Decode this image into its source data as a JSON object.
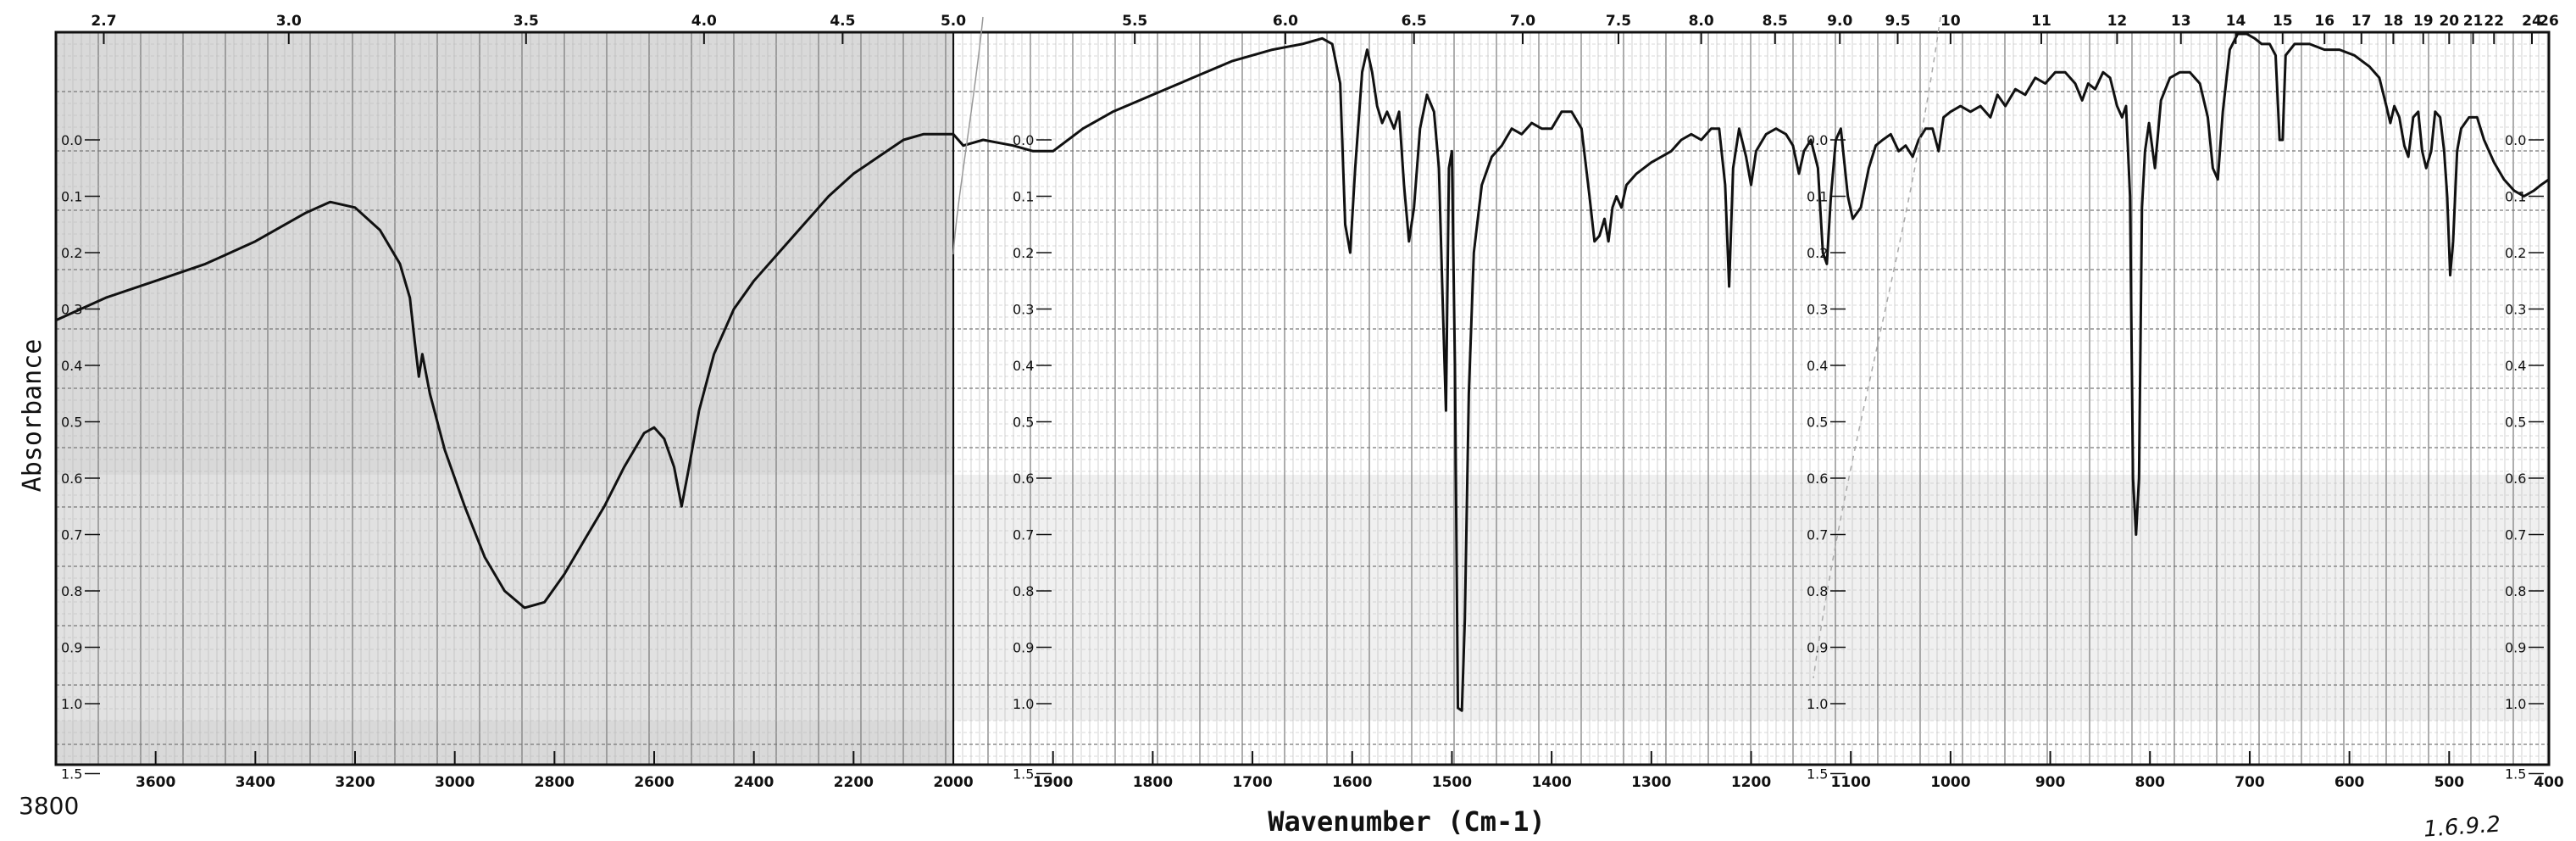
{
  "chart_data": {
    "type": "line",
    "xlabel": "Wavenumber (Cm-1)",
    "ylabel": "Absorbance",
    "corner_label": "3800",
    "handwritten_note": "1.6.9.2",
    "top_axis_label": "",
    "x_reversed": true,
    "xlim": [
      3800,
      400
    ],
    "x_scale_change_at": 2000,
    "bottom_ticks": [
      3600,
      3400,
      3200,
      3000,
      2800,
      2600,
      2400,
      2200,
      2000,
      1900,
      1800,
      1700,
      1600,
      1500,
      1400,
      1300,
      1200,
      1100,
      1000,
      900,
      800,
      700,
      600,
      500,
      400
    ],
    "top_ticks": [
      {
        "label": "2.7",
        "wn": 3704
      },
      {
        "label": "3.0",
        "wn": 3333
      },
      {
        "label": "3.5",
        "wn": 2857
      },
      {
        "label": "4.0",
        "wn": 2500
      },
      {
        "label": "4.5",
        "wn": 2222
      },
      {
        "label": "5.0",
        "wn": 2000
      },
      {
        "label": "5.5",
        "wn": 1818
      },
      {
        "label": "6.0",
        "wn": 1667
      },
      {
        "label": "6.5",
        "wn": 1538
      },
      {
        "label": "7.0",
        "wn": 1429
      },
      {
        "label": "7.5",
        "wn": 1333
      },
      {
        "label": "8.0",
        "wn": 1250
      },
      {
        "label": "8.5",
        "wn": 1176
      },
      {
        "label": "9.0",
        "wn": 1111
      },
      {
        "label": "9.5",
        "wn": 1053
      },
      {
        "label": "10",
        "wn": 1000
      },
      {
        "label": "11",
        "wn": 909
      },
      {
        "label": "12",
        "wn": 833
      },
      {
        "label": "13",
        "wn": 769
      },
      {
        "label": "14",
        "wn": 714
      },
      {
        "label": "15",
        "wn": 667
      },
      {
        "label": "16",
        "wn": 625
      },
      {
        "label": "17",
        "wn": 588
      },
      {
        "label": "18",
        "wn": 556
      },
      {
        "label": "19",
        "wn": 526
      },
      {
        "label": "20",
        "wn": 500
      },
      {
        "label": "21",
        "wn": 476
      },
      {
        "label": "22",
        "wn": 455
      },
      {
        "label": "24",
        "wn": 417
      },
      {
        "label": "26",
        "wn": 400
      }
    ],
    "y_ticks": [
      {
        "label": "0.0",
        "value": 0.0
      },
      {
        "label": "0.1",
        "value": 0.1
      },
      {
        "label": "0.2",
        "value": 0.2
      },
      {
        "label": "0.3",
        "value": 0.3
      },
      {
        "label": "0.4",
        "value": 0.4
      },
      {
        "label": "0.5",
        "value": 0.5
      },
      {
        "label": "0.6",
        "value": 0.6
      },
      {
        "label": "0.7",
        "value": 0.7
      },
      {
        "label": "0.8",
        "value": 0.8
      },
      {
        "label": "0.9",
        "value": 0.9
      },
      {
        "label": "1.0",
        "value": 1.0
      },
      {
        "label": "1.5",
        "value": 1.5
      }
    ],
    "grid": true,
    "legend": "none",
    "series": [
      {
        "color": "#111111",
        "points": [
          [
            3800,
            0.32
          ],
          [
            3700,
            0.28
          ],
          [
            3600,
            0.25
          ],
          [
            3500,
            0.22
          ],
          [
            3400,
            0.18
          ],
          [
            3300,
            0.13
          ],
          [
            3250,
            0.11
          ],
          [
            3200,
            0.12
          ],
          [
            3150,
            0.16
          ],
          [
            3110,
            0.22
          ],
          [
            3090,
            0.28
          ],
          [
            3080,
            0.36
          ],
          [
            3072,
            0.42
          ],
          [
            3065,
            0.38
          ],
          [
            3050,
            0.45
          ],
          [
            3020,
            0.55
          ],
          [
            2980,
            0.65
          ],
          [
            2940,
            0.74
          ],
          [
            2900,
            0.8
          ],
          [
            2860,
            0.83
          ],
          [
            2820,
            0.82
          ],
          [
            2780,
            0.77
          ],
          [
            2740,
            0.71
          ],
          [
            2700,
            0.65
          ],
          [
            2660,
            0.58
          ],
          [
            2620,
            0.52
          ],
          [
            2600,
            0.51
          ],
          [
            2580,
            0.53
          ],
          [
            2560,
            0.58
          ],
          [
            2545,
            0.65
          ],
          [
            2530,
            0.58
          ],
          [
            2510,
            0.48
          ],
          [
            2480,
            0.38
          ],
          [
            2440,
            0.3
          ],
          [
            2400,
            0.25
          ],
          [
            2350,
            0.2
          ],
          [
            2300,
            0.15
          ],
          [
            2250,
            0.1
          ],
          [
            2200,
            0.06
          ],
          [
            2150,
            0.03
          ],
          [
            2100,
            0.0
          ],
          [
            2060,
            -0.01
          ],
          [
            2030,
            -0.01
          ],
          [
            2005,
            -0.01
          ],
          [
            2000,
            -0.01
          ],
          [
            1990,
            0.01
          ],
          [
            1970,
            0.0
          ],
          [
            1940,
            0.01
          ],
          [
            1920,
            0.02
          ],
          [
            1900,
            0.02
          ],
          [
            1870,
            -0.02
          ],
          [
            1840,
            -0.05
          ],
          [
            1800,
            -0.08
          ],
          [
            1760,
            -0.11
          ],
          [
            1720,
            -0.14
          ],
          [
            1680,
            -0.16
          ],
          [
            1650,
            -0.17
          ],
          [
            1630,
            -0.18
          ],
          [
            1620,
            -0.17
          ],
          [
            1612,
            -0.1
          ],
          [
            1607,
            0.15
          ],
          [
            1602,
            0.2
          ],
          [
            1597,
            0.05
          ],
          [
            1590,
            -0.12
          ],
          [
            1585,
            -0.16
          ],
          [
            1580,
            -0.12
          ],
          [
            1575,
            -0.06
          ],
          [
            1570,
            -0.03
          ],
          [
            1565,
            -0.05
          ],
          [
            1558,
            -0.02
          ],
          [
            1553,
            -0.05
          ],
          [
            1548,
            0.08
          ],
          [
            1543,
            0.18
          ],
          [
            1538,
            0.12
          ],
          [
            1532,
            -0.02
          ],
          [
            1525,
            -0.08
          ],
          [
            1518,
            -0.05
          ],
          [
            1513,
            0.05
          ],
          [
            1509,
            0.3
          ],
          [
            1506,
            0.48
          ],
          [
            1503,
            0.05
          ],
          [
            1500,
            0.02
          ],
          [
            1497,
            0.4
          ],
          [
            1494,
            1.03
          ],
          [
            1490,
            1.05
          ],
          [
            1487,
            0.85
          ],
          [
            1483,
            0.45
          ],
          [
            1478,
            0.2
          ],
          [
            1470,
            0.08
          ],
          [
            1460,
            0.03
          ],
          [
            1450,
            0.01
          ],
          [
            1440,
            -0.02
          ],
          [
            1430,
            -0.01
          ],
          [
            1420,
            -0.03
          ],
          [
            1410,
            -0.02
          ],
          [
            1400,
            -0.02
          ],
          [
            1390,
            -0.05
          ],
          [
            1380,
            -0.05
          ],
          [
            1370,
            -0.02
          ],
          [
            1362,
            0.1
          ],
          [
            1357,
            0.18
          ],
          [
            1352,
            0.17
          ],
          [
            1347,
            0.14
          ],
          [
            1343,
            0.18
          ],
          [
            1339,
            0.12
          ],
          [
            1335,
            0.1
          ],
          [
            1330,
            0.12
          ],
          [
            1325,
            0.08
          ],
          [
            1315,
            0.06
          ],
          [
            1300,
            0.04
          ],
          [
            1290,
            0.03
          ],
          [
            1280,
            0.02
          ],
          [
            1270,
            0.0
          ],
          [
            1260,
            -0.01
          ],
          [
            1250,
            0.0
          ],
          [
            1240,
            -0.02
          ],
          [
            1232,
            -0.02
          ],
          [
            1226,
            0.08
          ],
          [
            1222,
            0.26
          ],
          [
            1218,
            0.05
          ],
          [
            1212,
            -0.02
          ],
          [
            1205,
            0.03
          ],
          [
            1200,
            0.08
          ],
          [
            1195,
            0.02
          ],
          [
            1185,
            -0.01
          ],
          [
            1175,
            -0.02
          ],
          [
            1165,
            -0.01
          ],
          [
            1158,
            0.01
          ],
          [
            1152,
            0.06
          ],
          [
            1147,
            0.02
          ],
          [
            1140,
            0.0
          ],
          [
            1133,
            0.05
          ],
          [
            1128,
            0.2
          ],
          [
            1124,
            0.22
          ],
          [
            1120,
            0.1
          ],
          [
            1115,
            0.0
          ],
          [
            1110,
            -0.02
          ],
          [
            1103,
            0.1
          ],
          [
            1098,
            0.14
          ],
          [
            1090,
            0.12
          ],
          [
            1082,
            0.05
          ],
          [
            1075,
            0.01
          ],
          [
            1068,
            0.0
          ],
          [
            1060,
            -0.01
          ],
          [
            1052,
            0.02
          ],
          [
            1045,
            0.01
          ],
          [
            1038,
            0.03
          ],
          [
            1032,
            0.0
          ],
          [
            1025,
            -0.02
          ],
          [
            1018,
            -0.02
          ],
          [
            1012,
            0.02
          ],
          [
            1007,
            -0.04
          ],
          [
            1000,
            -0.05
          ],
          [
            990,
            -0.06
          ],
          [
            980,
            -0.05
          ],
          [
            970,
            -0.06
          ],
          [
            960,
            -0.04
          ],
          [
            953,
            -0.08
          ],
          [
            945,
            -0.06
          ],
          [
            935,
            -0.09
          ],
          [
            925,
            -0.08
          ],
          [
            915,
            -0.11
          ],
          [
            905,
            -0.1
          ],
          [
            895,
            -0.12
          ],
          [
            885,
            -0.12
          ],
          [
            875,
            -0.1
          ],
          [
            868,
            -0.07
          ],
          [
            862,
            -0.1
          ],
          [
            855,
            -0.09
          ],
          [
            847,
            -0.12
          ],
          [
            840,
            -0.11
          ],
          [
            833,
            -0.06
          ],
          [
            828,
            -0.04
          ],
          [
            824,
            -0.06
          ],
          [
            820,
            0.1
          ],
          [
            817,
            0.6
          ],
          [
            814,
            0.7
          ],
          [
            811,
            0.6
          ],
          [
            808,
            0.12
          ],
          [
            805,
            0.02
          ],
          [
            801,
            -0.03
          ],
          [
            795,
            0.05
          ],
          [
            789,
            -0.07
          ],
          [
            780,
            -0.11
          ],
          [
            770,
            -0.12
          ],
          [
            760,
            -0.12
          ],
          [
            750,
            -0.1
          ],
          [
            742,
            -0.04
          ],
          [
            737,
            0.05
          ],
          [
            732,
            0.07
          ],
          [
            727,
            -0.05
          ],
          [
            720,
            -0.16
          ],
          [
            712,
            -0.19
          ],
          [
            703,
            -0.19
          ],
          [
            695,
            -0.18
          ],
          [
            688,
            -0.17
          ],
          [
            680,
            -0.17
          ],
          [
            674,
            -0.15
          ],
          [
            670,
            0.0
          ],
          [
            667,
            0.0
          ],
          [
            664,
            -0.15
          ],
          [
            655,
            -0.17
          ],
          [
            640,
            -0.17
          ],
          [
            625,
            -0.16
          ],
          [
            610,
            -0.16
          ],
          [
            595,
            -0.15
          ],
          [
            580,
            -0.13
          ],
          [
            570,
            -0.11
          ],
          [
            563,
            -0.06
          ],
          [
            559,
            -0.03
          ],
          [
            555,
            -0.06
          ],
          [
            550,
            -0.04
          ],
          [
            545,
            0.01
          ],
          [
            541,
            0.03
          ],
          [
            536,
            -0.04
          ],
          [
            531,
            -0.05
          ],
          [
            527,
            0.02
          ],
          [
            523,
            0.05
          ],
          [
            518,
            0.02
          ],
          [
            514,
            -0.05
          ],
          [
            509,
            -0.04
          ],
          [
            505,
            0.02
          ],
          [
            502,
            0.1
          ],
          [
            499,
            0.24
          ],
          [
            496,
            0.18
          ],
          [
            492,
            0.02
          ],
          [
            488,
            -0.02
          ],
          [
            480,
            -0.04
          ],
          [
            472,
            -0.04
          ],
          [
            465,
            0.0
          ],
          [
            455,
            0.04
          ],
          [
            445,
            0.07
          ],
          [
            435,
            0.09
          ],
          [
            425,
            0.1
          ],
          [
            415,
            0.09
          ],
          [
            408,
            0.08
          ],
          [
            400,
            0.07
          ]
        ]
      }
    ]
  }
}
